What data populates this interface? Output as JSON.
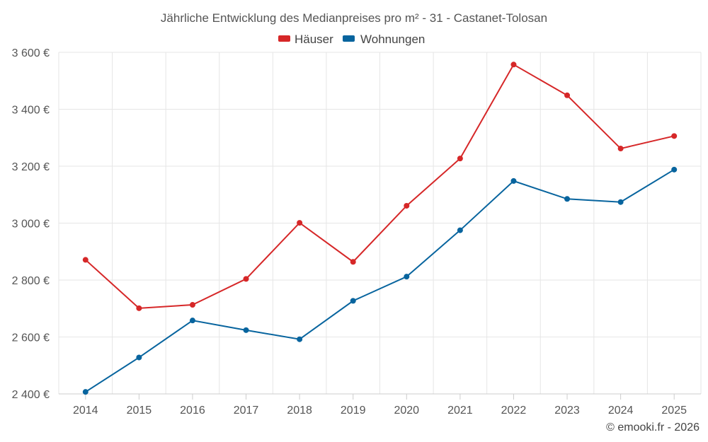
{
  "chart_data": {
    "type": "line",
    "title": "Jährliche Entwicklung des Medianpreises pro m² - 31 - Castanet-Tolosan",
    "categories": [
      "2014",
      "2015",
      "2016",
      "2017",
      "2018",
      "2019",
      "2020",
      "2021",
      "2022",
      "2023",
      "2024",
      "2025"
    ],
    "series": [
      {
        "name": "Häuser",
        "color": "#d62728",
        "values": [
          2871,
          2701,
          2713,
          2804,
          3001,
          2864,
          3061,
          3227,
          3557,
          3449,
          3262,
          3306
        ]
      },
      {
        "name": "Wohnungen",
        "color": "#07649e",
        "values": [
          2407,
          2528,
          2658,
          2624,
          2592,
          2727,
          2812,
          2975,
          3148,
          3085,
          3074,
          3188
        ]
      }
    ],
    "ylim": [
      2400,
      3600
    ],
    "yticks": [
      2400,
      2600,
      2800,
      3000,
      3200,
      3400,
      3600
    ],
    "ytick_labels": [
      "2 400 €",
      "2 600 €",
      "2 800 €",
      "3 000 €",
      "3 200 €",
      "3 400 €",
      "3 600 €"
    ],
    "xlabel": "",
    "ylabel": "",
    "grid": true,
    "legend_position": "top-center"
  },
  "credit": "© emooki.fr - 2026"
}
